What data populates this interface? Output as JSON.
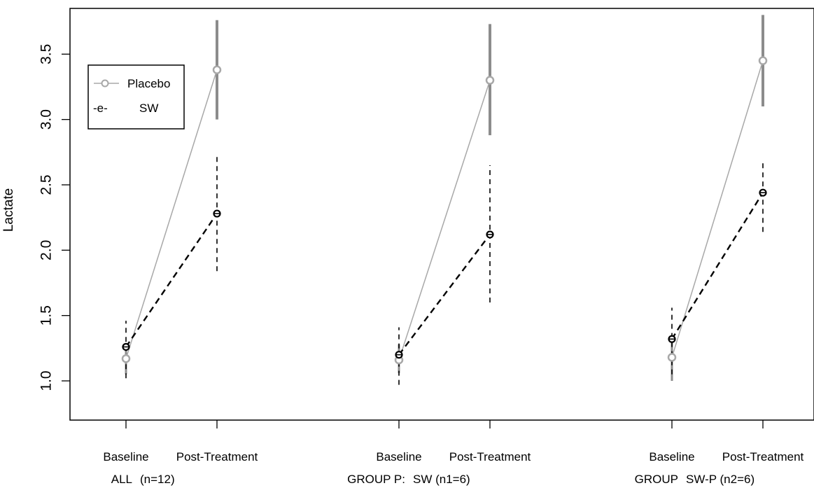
{
  "chart_data": {
    "type": "line",
    "ylabel": "Lactate",
    "xlabel": "",
    "title": "",
    "ylim": [
      0.7,
      3.85
    ],
    "yticks": [
      1.0,
      1.5,
      2.0,
      2.5,
      3.0,
      3.5
    ],
    "ytick_labels": [
      "1.0",
      "1.5",
      "2.0",
      "2.5",
      "3.0",
      "3.5"
    ],
    "xtick_labels": [
      "Baseline",
      "Post-Treatment"
    ],
    "groups": [
      {
        "label_left": "ALL",
        "label_right": "(n=12)",
        "series": [
          {
            "name": "Placebo",
            "values": [
              1.17,
              3.38
            ],
            "err_low": [
              1.05,
              3.0
            ],
            "err_high": [
              1.28,
              3.76
            ]
          },
          {
            "name": "SW",
            "values": [
              1.26,
              2.28
            ],
            "err_low": [
              1.02,
              1.84
            ],
            "err_high": [
              1.46,
              2.72
            ]
          }
        ]
      },
      {
        "label_left": "GROUP P:",
        "label_right": "SW (n1=6)",
        "series": [
          {
            "name": "Placebo",
            "values": [
              1.16,
              3.3
            ],
            "err_low": [
              1.06,
              2.88
            ],
            "err_high": [
              1.28,
              3.73
            ]
          },
          {
            "name": "SW",
            "values": [
              1.2,
              2.12
            ],
            "err_low": [
              0.97,
              1.6
            ],
            "err_high": [
              1.41,
              2.65
            ]
          }
        ]
      },
      {
        "label_left": "GROUP",
        "label_right": "SW-P (n2=6)",
        "series": [
          {
            "name": "Placebo",
            "values": [
              1.18,
              3.45
            ],
            "err_low": [
              1.0,
              3.1
            ],
            "err_high": [
              1.32,
              3.8
            ]
          },
          {
            "name": "SW",
            "values": [
              1.32,
              2.44
            ],
            "err_low": [
              1.05,
              2.14
            ],
            "err_high": [
              1.56,
              2.69
            ]
          }
        ]
      }
    ],
    "legend": {
      "placement": "top-left",
      "entries": [
        {
          "name": "Placebo",
          "symbol": "-o-"
        },
        {
          "name": "SW",
          "symbol": "-e-"
        }
      ]
    },
    "colors": {
      "placebo": "#a8a8a8",
      "placebo_err": "#8c8c8c",
      "sw": "#000000"
    },
    "grid": false
  }
}
